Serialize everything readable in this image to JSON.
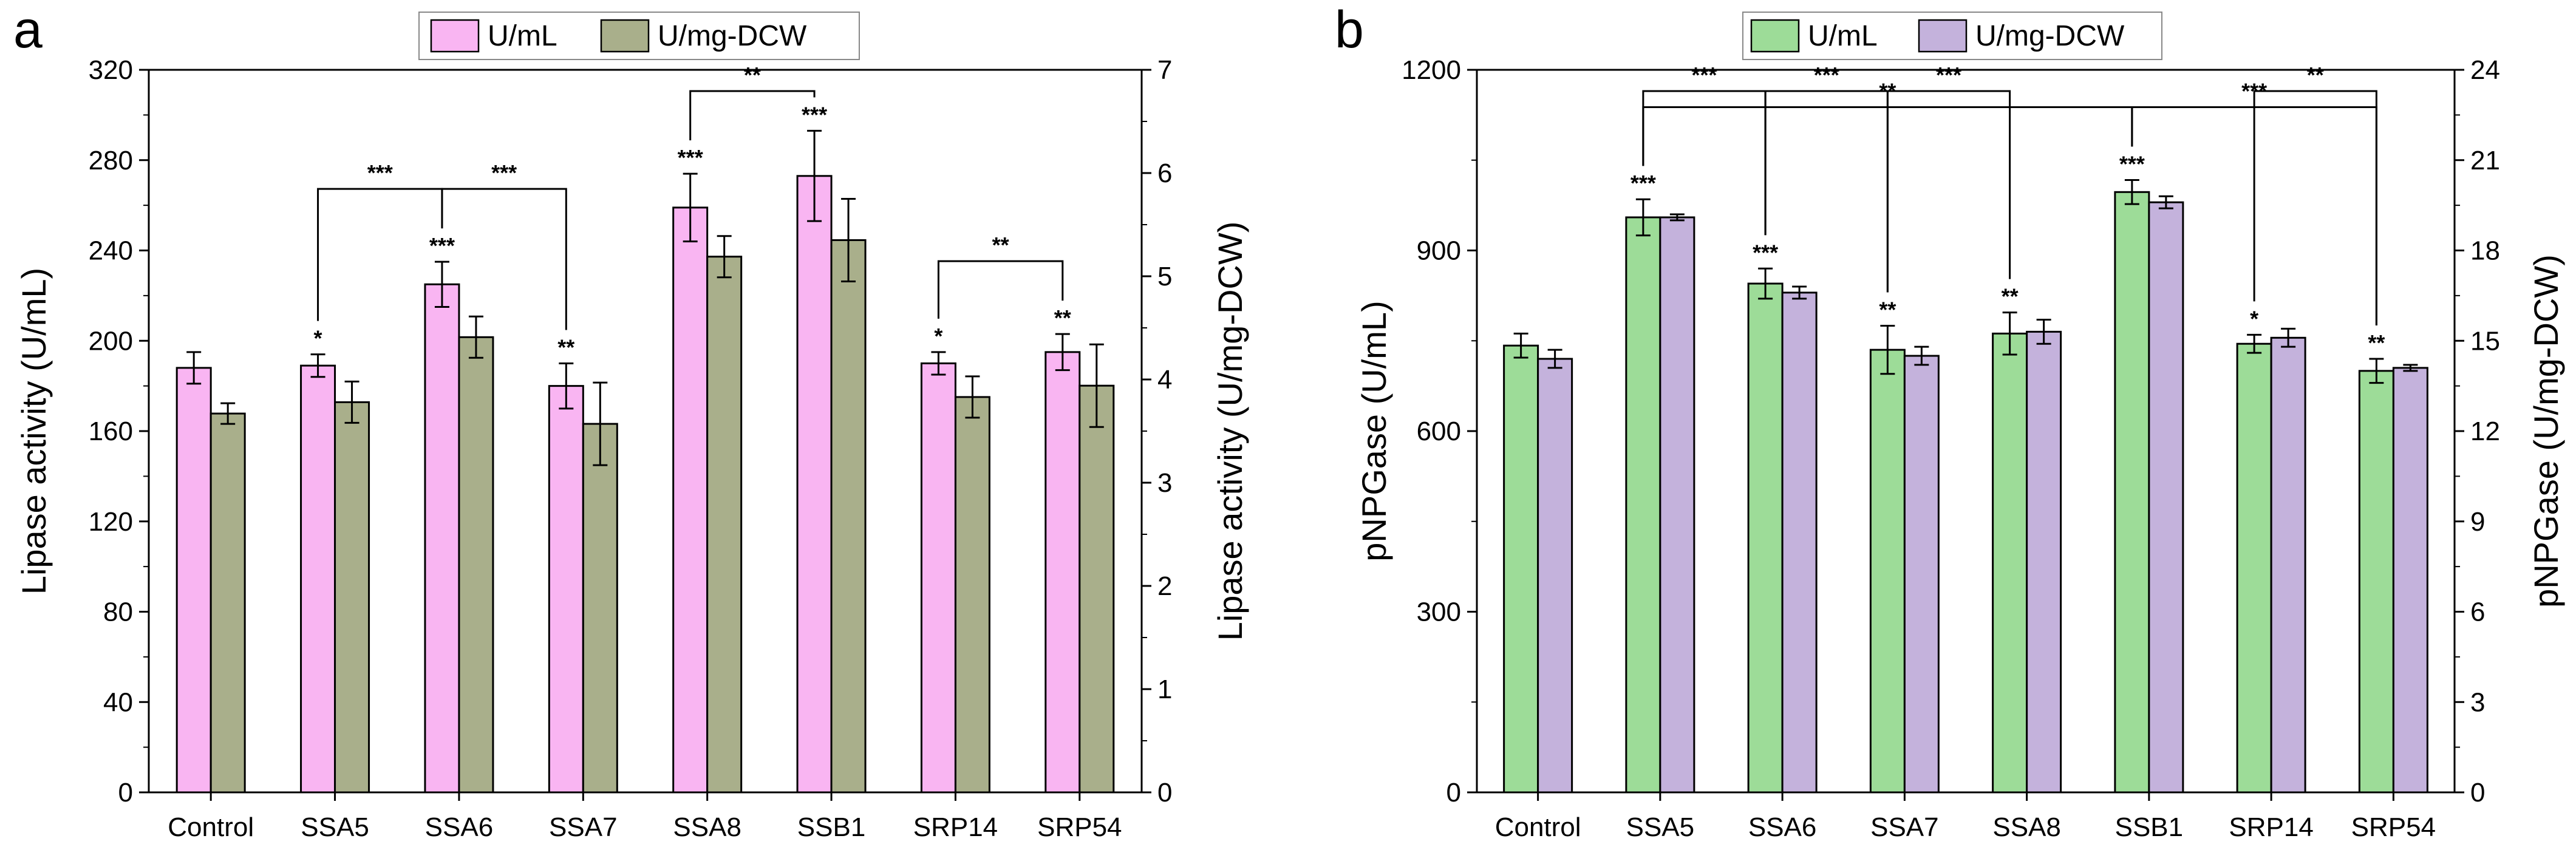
{
  "chart_data": [
    {
      "type": "bar",
      "panel_label": "a",
      "categories": [
        "Control",
        "SSA5",
        "SSA6",
        "SSA7",
        "SSA8",
        "SSB1",
        "SRP14",
        "SRP54"
      ],
      "legend": {
        "placement": "top-center",
        "entries": [
          "U/mL",
          "U/mg-DCW"
        ]
      },
      "ylabel": "Lipase activity (U/mL)",
      "ylabel_right": "Lipase activity (U/mg-DCW)",
      "ylim": [
        0,
        320
      ],
      "yticks": [
        "0",
        "40",
        "80",
        "120",
        "160",
        "200",
        "240",
        "280",
        "320"
      ],
      "ylim_right": [
        0,
        7
      ],
      "yticks_right": [
        "0",
        "1",
        "2",
        "3",
        "4",
        "5",
        "6",
        "7"
      ],
      "series": [
        {
          "name": "U/mL",
          "axis": "left",
          "color": "#f9b5f2",
          "values": [
            188,
            189,
            225,
            180,
            259,
            273,
            190,
            195
          ],
          "errors": [
            7,
            5,
            10,
            10,
            15,
            20,
            5,
            8
          ],
          "sig": [
            "",
            "*",
            "***",
            "**",
            "***",
            "***",
            "*",
            "**"
          ]
        },
        {
          "name": "U/mg-DCW",
          "axis": "right",
          "color": "#a9af8b",
          "values": [
            3.67,
            3.78,
            4.41,
            3.57,
            5.19,
            5.35,
            3.83,
            3.94
          ],
          "errors": [
            0.1,
            0.2,
            0.2,
            0.4,
            0.2,
            0.4,
            0.2,
            0.4
          ],
          "sig": [
            "",
            "",
            "",
            "",
            "",
            "",
            "",
            ""
          ]
        }
      ],
      "brackets": [
        {
          "from": "SSA5",
          "to": "SSA6",
          "label": "***"
        },
        {
          "from": "SSA6",
          "to": "SSA7",
          "label": "***"
        },
        {
          "from": "SSA8",
          "to": "SSB1",
          "label": "**"
        },
        {
          "from": "SRP14",
          "to": "SRP54",
          "label": "**"
        }
      ]
    },
    {
      "type": "bar",
      "panel_label": "b",
      "categories": [
        "Control",
        "SSA5",
        "SSA6",
        "SSA7",
        "SSA8",
        "SSB1",
        "SRP14",
        "SRP54"
      ],
      "legend": {
        "placement": "top-center",
        "entries": [
          "U/mL",
          "U/mg-DCW"
        ]
      },
      "ylabel": "pNPGase (U/mL)",
      "ylabel_right": "pNPGase (U/mg-DCW)",
      "ylim": [
        0,
        1200
      ],
      "yticks": [
        "0",
        "300",
        "600",
        "900",
        "1200"
      ],
      "ylim_right": [
        0,
        24
      ],
      "yticks_right": [
        "0",
        "3",
        "6",
        "9",
        "12",
        "15",
        "18",
        "21",
        "24"
      ],
      "series": [
        {
          "name": "U/mL",
          "axis": "left",
          "color": "#9ddc98",
          "values": [
            742,
            955,
            845,
            735,
            762,
            997,
            745,
            700
          ],
          "errors": [
            20,
            30,
            25,
            40,
            35,
            20,
            15,
            20
          ],
          "sig": [
            "",
            "***",
            "***",
            "**",
            "**",
            "***",
            "*",
            "**"
          ]
        },
        {
          "name": "U/mg-DCW",
          "axis": "right",
          "color": "#c4b2dc",
          "values": [
            14.4,
            19.1,
            16.6,
            14.5,
            15.3,
            19.6,
            15.1,
            14.1
          ],
          "errors": [
            0.3,
            0.1,
            0.2,
            0.3,
            0.4,
            0.2,
            0.3,
            0.1
          ],
          "sig": [
            "",
            "",
            "",
            "",
            "",
            "",
            "",
            ""
          ]
        }
      ],
      "brackets": [
        {
          "from": "SSA5",
          "to": "SSB1",
          "label": "**"
        },
        {
          "from": "SSB1",
          "to": "SRP54",
          "label": "***"
        },
        {
          "from": "SSA5",
          "to": "SSA6",
          "label": "***"
        },
        {
          "from": "SSA6",
          "to": "SSA7",
          "label": "***"
        },
        {
          "from": "SSA7",
          "to": "SSA8",
          "label": "***"
        },
        {
          "from": "SRP14",
          "to": "SRP54",
          "label": "**"
        }
      ]
    }
  ]
}
